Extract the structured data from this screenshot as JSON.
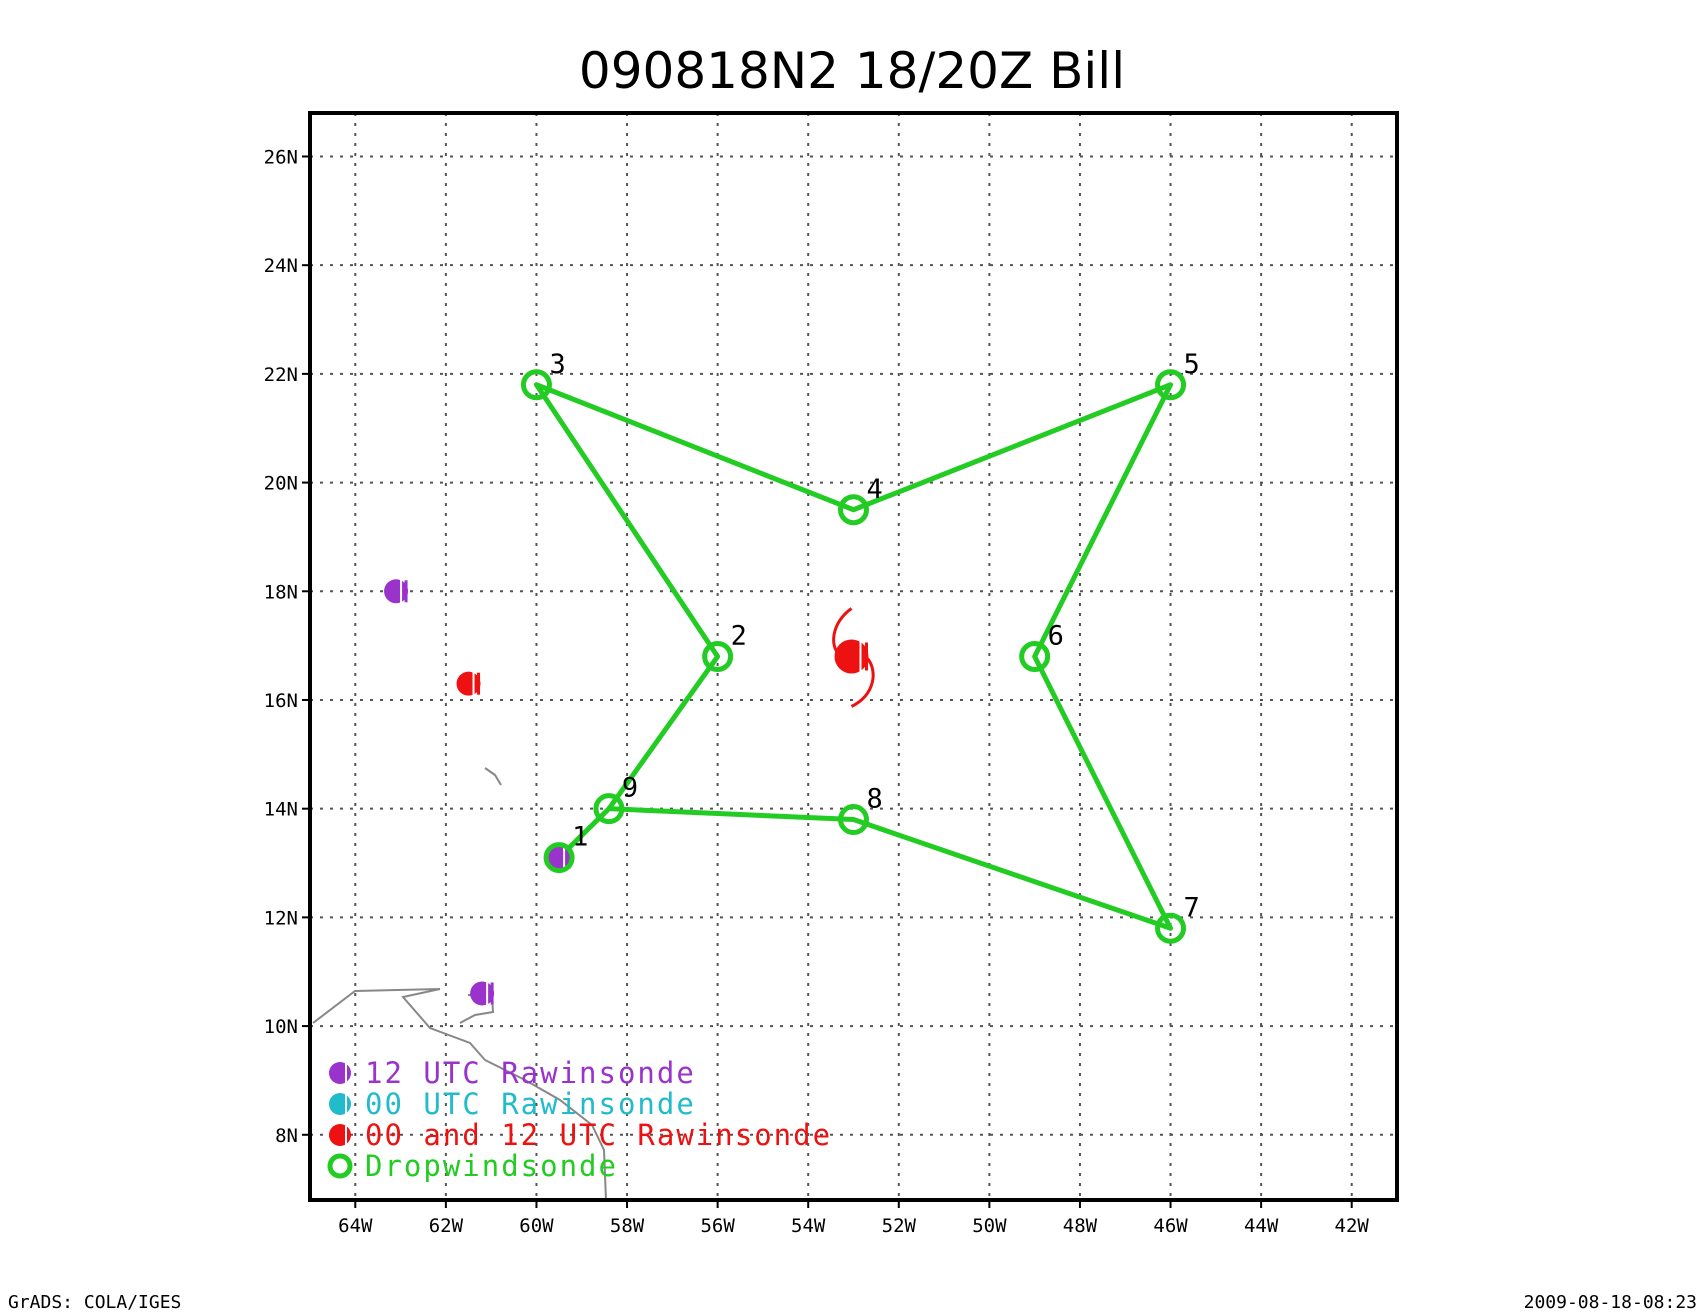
{
  "title": "090818N2 18/20Z   Bill",
  "footer_left": "GrADS: COLA/IGES",
  "footer_right": "2009-08-18-08:23",
  "map": {
    "lon_range": [
      -65,
      -41
    ],
    "lat_range": [
      6.8,
      26.8
    ],
    "lon_ticks": [
      {
        "value": -64,
        "label": "64W"
      },
      {
        "value": -62,
        "label": "62W"
      },
      {
        "value": -60,
        "label": "60W"
      },
      {
        "value": -58,
        "label": "58W"
      },
      {
        "value": -56,
        "label": "56W"
      },
      {
        "value": -54,
        "label": "54W"
      },
      {
        "value": -52,
        "label": "52W"
      },
      {
        "value": -50,
        "label": "50W"
      },
      {
        "value": -48,
        "label": "48W"
      },
      {
        "value": -46,
        "label": "46W"
      },
      {
        "value": -44,
        "label": "44W"
      },
      {
        "value": -42,
        "label": "42W"
      }
    ],
    "lat_ticks": [
      {
        "value": 8,
        "label": "8N"
      },
      {
        "value": 10,
        "label": "10N"
      },
      {
        "value": 12,
        "label": "12N"
      },
      {
        "value": 14,
        "label": "14N"
      },
      {
        "value": 16,
        "label": "16N"
      },
      {
        "value": 18,
        "label": "18N"
      },
      {
        "value": 20,
        "label": "20N"
      },
      {
        "value": 22,
        "label": "22N"
      },
      {
        "value": 24,
        "label": "24N"
      },
      {
        "value": 26,
        "label": "26N"
      }
    ],
    "colors": {
      "dropwindsonde": "#22cc22",
      "rawinsonde_12": "#9933cc",
      "rawinsonde_00": "#22bbcc",
      "rawinsonde_both": "#ee1111",
      "coast": "#888888",
      "storm": "#ee1111"
    },
    "dropwindsondes": [
      {
        "label": "1",
        "lon": -59.5,
        "lat": 13.1
      },
      {
        "label": "2",
        "lon": -56.0,
        "lat": 16.8
      },
      {
        "label": "3",
        "lon": -60.0,
        "lat": 21.8
      },
      {
        "label": "4",
        "lon": -53.0,
        "lat": 19.5
      },
      {
        "label": "5",
        "lon": -46.0,
        "lat": 21.8
      },
      {
        "label": "6",
        "lon": -49.0,
        "lat": 16.8
      },
      {
        "label": "7",
        "lon": -46.0,
        "lat": 11.8
      },
      {
        "label": "8",
        "lon": -53.0,
        "lat": 13.8
      },
      {
        "label": "9",
        "lon": -58.4,
        "lat": 14.0
      }
    ],
    "flight_track": [
      "1",
      "9",
      "2",
      "3",
      "4",
      "5",
      "6",
      "7",
      "8",
      "9"
    ],
    "rawinsondes": [
      {
        "type": "12",
        "lon": -63.1,
        "lat": 18.0
      },
      {
        "type": "both",
        "lon": -61.5,
        "lat": 16.3
      },
      {
        "type": "12",
        "lon": -59.5,
        "lat": 13.1
      },
      {
        "type": "12",
        "lon": -61.2,
        "lat": 10.6
      }
    ],
    "storm": {
      "lon": -53.0,
      "lat": 16.8
    }
  },
  "legend": [
    {
      "label": "12 UTC Rawinsonde",
      "kind": "dot",
      "color": "#9933cc"
    },
    {
      "label": "00 UTC Rawinsonde",
      "kind": "dot",
      "color": "#22bbcc"
    },
    {
      "label": "00 and 12 UTC Rawinsonde",
      "kind": "dot",
      "color": "#ee1111"
    },
    {
      "label": "Dropwindsonde",
      "kind": "ring",
      "color": "#22cc22"
    }
  ]
}
